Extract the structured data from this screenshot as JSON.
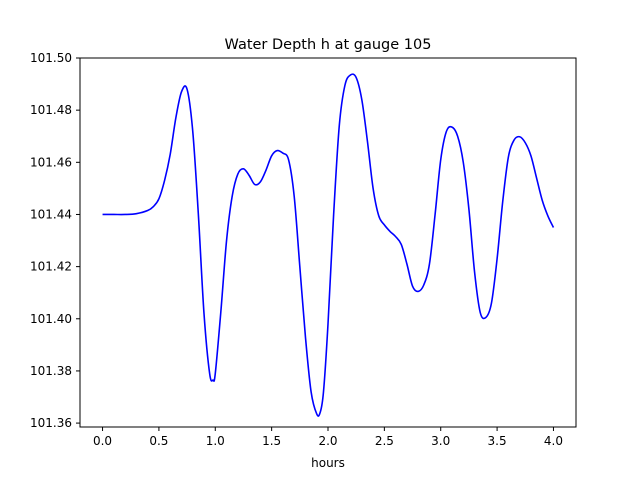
{
  "chart_data": {
    "type": "line",
    "title": "Water Depth h at gauge 105",
    "xlabel": "hours",
    "ylabel": "",
    "xlim": [
      -0.2,
      4.2
    ],
    "ylim": [
      101.3585,
      101.5
    ],
    "xticks": [
      0.0,
      0.5,
      1.0,
      1.5,
      2.0,
      2.5,
      3.0,
      3.5,
      4.0
    ],
    "xtick_labels": [
      "0.0",
      "0.5",
      "1.0",
      "1.5",
      "2.0",
      "2.5",
      "3.0",
      "3.5",
      "4.0"
    ],
    "yticks": [
      101.36,
      101.38,
      101.4,
      101.42,
      101.44,
      101.46,
      101.48,
      101.5
    ],
    "ytick_labels": [
      "101.36",
      "101.38",
      "101.40",
      "101.42",
      "101.44",
      "101.46",
      "101.48",
      "101.50"
    ],
    "grid": false,
    "series": [
      {
        "color": "#0000ff",
        "x": [
          0.0,
          0.1,
          0.2,
          0.3,
          0.4,
          0.45,
          0.5,
          0.55,
          0.6,
          0.65,
          0.7,
          0.75,
          0.8,
          0.85,
          0.9,
          0.95,
          0.98,
          1.0,
          1.05,
          1.1,
          1.15,
          1.2,
          1.25,
          1.3,
          1.35,
          1.4,
          1.45,
          1.5,
          1.55,
          1.6,
          1.65,
          1.7,
          1.75,
          1.8,
          1.85,
          1.9,
          1.93,
          1.96,
          2.0,
          2.05,
          2.1,
          2.15,
          2.2,
          2.25,
          2.3,
          2.35,
          2.4,
          2.45,
          2.5,
          2.55,
          2.6,
          2.65,
          2.7,
          2.75,
          2.8,
          2.85,
          2.9,
          2.95,
          3.0,
          3.05,
          3.1,
          3.15,
          3.2,
          3.25,
          3.3,
          3.35,
          3.4,
          3.45,
          3.5,
          3.55,
          3.6,
          3.65,
          3.7,
          3.75,
          3.8,
          3.85,
          3.9,
          3.95,
          4.0
        ],
        "y": [
          101.44,
          101.44,
          101.44,
          101.4403,
          101.4415,
          101.443,
          101.446,
          101.453,
          101.463,
          101.477,
          101.487,
          101.488,
          101.472,
          101.44,
          101.402,
          101.379,
          101.3765,
          101.379,
          101.403,
          101.43,
          101.447,
          101.4555,
          101.4575,
          101.455,
          101.4515,
          101.4525,
          101.457,
          101.4625,
          101.4645,
          101.4635,
          101.461,
          101.447,
          101.42,
          101.393,
          101.372,
          101.3635,
          101.364,
          101.372,
          101.398,
          101.44,
          101.474,
          101.4895,
          101.4935,
          101.4925,
          101.484,
          101.468,
          101.45,
          101.4395,
          101.436,
          101.4335,
          101.4315,
          101.4285,
          101.421,
          101.4125,
          101.4105,
          101.413,
          101.421,
          101.44,
          101.461,
          101.4718,
          101.4735,
          101.47,
          101.46,
          101.442,
          101.418,
          101.4025,
          101.4005,
          101.406,
          101.423,
          101.445,
          101.462,
          101.4685,
          101.4698,
          101.4675,
          101.4625,
          101.454,
          101.4455,
          101.4395,
          101.435
        ]
      }
    ]
  }
}
